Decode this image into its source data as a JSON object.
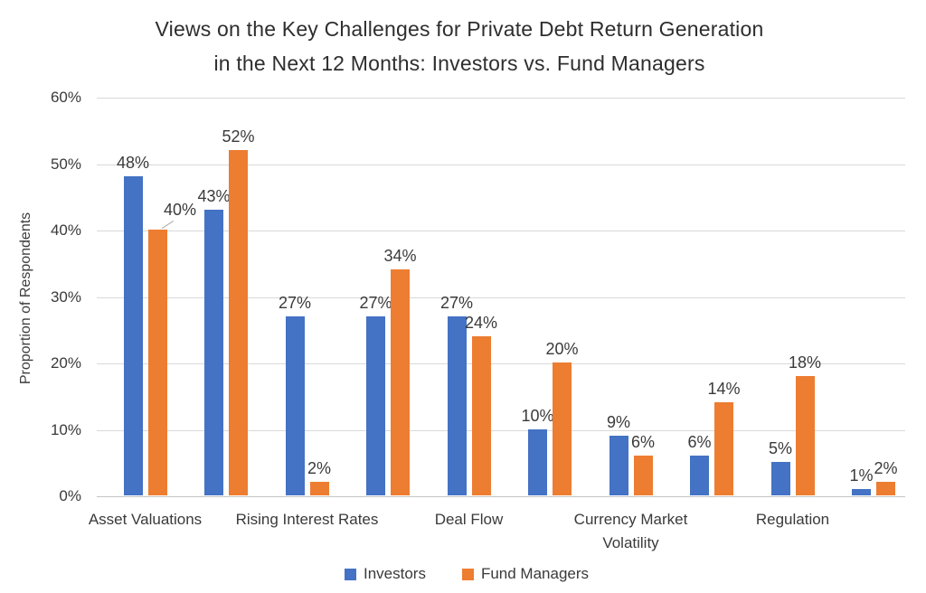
{
  "title": {
    "line1": "Views on the Key Challenges for Private Debt Return Generation",
    "line2": "in the Next 12 Months: Investors vs. Fund Managers"
  },
  "colors": {
    "investors": "#4472C4",
    "fund_managers": "#ED7D31",
    "gridline": "#D9D9D9",
    "axis_line": "#C4C4C4",
    "text": "#3A3A3A"
  },
  "chart_data": {
    "type": "bar",
    "title": "Views on the Key Challenges for Private Debt Return Generation in the Next 12 Months: Investors vs. Fund Managers",
    "ylabel": "Proportion of Respondents",
    "xlabel": "",
    "ylim": [
      0,
      60
    ],
    "ytick_labels": [
      "0%",
      "10%",
      "20%",
      "30%",
      "40%",
      "50%",
      "60%"
    ],
    "grid": true,
    "legend_position": "bottom",
    "categories": [
      "Asset Valuations",
      "",
      "Rising Interest Rates",
      "",
      "Deal Flow",
      "",
      "Currency Market Volatility",
      "",
      "Regulation",
      ""
    ],
    "series": [
      {
        "name": "Investors",
        "color": "#4472C4",
        "values": [
          48,
          43,
          27,
          27,
          27,
          10,
          9,
          6,
          5,
          1
        ],
        "labels": [
          "48%",
          "43%",
          "27%",
          "27%",
          "27%",
          "10%",
          "9%",
          "6%",
          "5%",
          "1%"
        ]
      },
      {
        "name": "Fund Managers",
        "color": "#ED7D31",
        "values": [
          40,
          52,
          2,
          34,
          24,
          20,
          6,
          14,
          18,
          2
        ],
        "labels": [
          "40%",
          "52%",
          "2%",
          "34%",
          "24%",
          "20%",
          "6%",
          "14%",
          "18%",
          "2%"
        ]
      }
    ],
    "callout": {
      "series_index": 1,
      "value_index": 0,
      "note": "40% data label offset up-right with gray leader line to bar top"
    }
  }
}
